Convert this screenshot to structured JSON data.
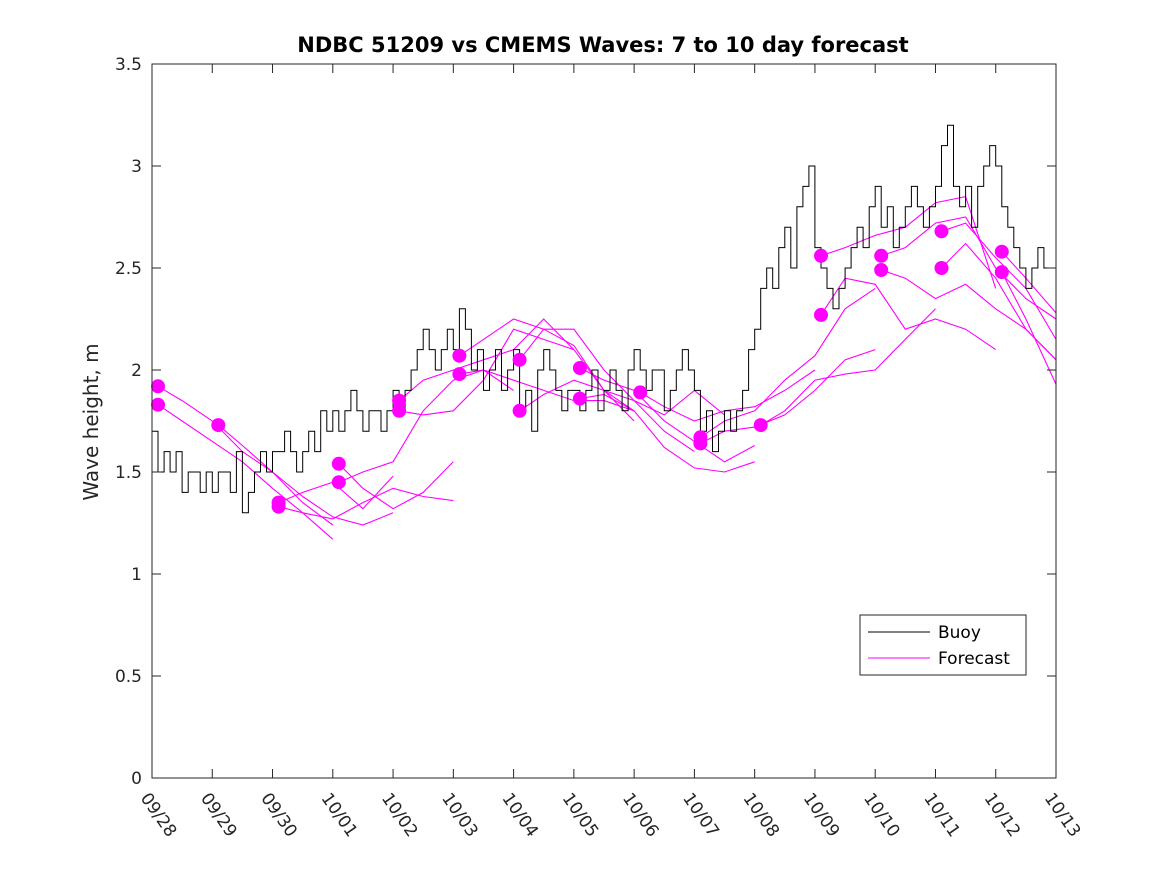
{
  "chart_data": {
    "type": "line",
    "title": "NDBC 51209 vs CMEMS Waves: 7 to 10 day forecast",
    "xlabel": "",
    "ylabel": "Wave height, m",
    "ylim": [
      0,
      3.5
    ],
    "yticks": [
      "0",
      "0.5",
      "1",
      "1.5",
      "2",
      "2.5",
      "3",
      "3.5"
    ],
    "xlim": [
      0,
      15
    ],
    "xticks": [
      "09/28",
      "09/29",
      "09/30",
      "10/01",
      "10/02",
      "10/03",
      "10/04",
      "10/05",
      "10/06",
      "10/07",
      "10/08",
      "10/09",
      "10/10",
      "10/11",
      "10/12",
      "10/13"
    ],
    "grid": false,
    "legend": {
      "position": "bottom-right",
      "entries": [
        "Buoy",
        "Forecast"
      ]
    },
    "colors": {
      "buoy": "#000000",
      "forecast": "#ff00ff"
    },
    "buoy": {
      "name": "Buoy",
      "x": [
        0.0,
        0.1,
        0.2,
        0.3,
        0.4,
        0.5,
        0.6,
        0.7,
        0.8,
        0.9,
        1.0,
        1.1,
        1.2,
        1.3,
        1.4,
        1.5,
        1.6,
        1.7,
        1.8,
        1.9,
        2.0,
        2.1,
        2.2,
        2.3,
        2.4,
        2.5,
        2.6,
        2.7,
        2.8,
        2.9,
        3.0,
        3.1,
        3.2,
        3.3,
        3.4,
        3.5,
        3.6,
        3.7,
        3.8,
        3.9,
        4.0,
        4.1,
        4.2,
        4.3,
        4.4,
        4.5,
        4.6,
        4.7,
        4.8,
        4.9,
        5.0,
        5.1,
        5.2,
        5.3,
        5.4,
        5.5,
        5.6,
        5.7,
        5.8,
        5.9,
        6.0,
        6.1,
        6.2,
        6.3,
        6.4,
        6.5,
        6.6,
        6.7,
        6.8,
        6.9,
        7.0,
        7.1,
        7.2,
        7.3,
        7.4,
        7.5,
        7.6,
        7.7,
        7.8,
        7.9,
        8.0,
        8.1,
        8.2,
        8.3,
        8.4,
        8.5,
        8.6,
        8.7,
        8.8,
        8.9,
        9.0,
        9.1,
        9.2,
        9.3,
        9.4,
        9.5,
        9.6,
        9.7,
        9.8,
        9.9,
        10.0,
        10.1,
        10.2,
        10.3,
        10.4,
        10.5,
        10.6,
        10.7,
        10.8,
        10.9,
        11.0,
        11.1,
        11.2,
        11.3,
        11.4,
        11.5,
        11.6,
        11.7,
        11.8,
        11.9,
        12.0,
        12.1,
        12.2,
        12.3,
        12.4,
        12.5,
        12.6,
        12.7,
        12.8,
        12.9,
        13.0,
        13.1,
        13.2,
        13.3,
        13.4,
        13.5,
        13.6,
        13.7,
        13.8,
        13.9,
        14.0,
        14.1,
        14.2,
        14.3,
        14.4,
        14.5,
        14.6,
        14.7,
        14.8
      ],
      "values": [
        1.7,
        1.5,
        1.6,
        1.5,
        1.6,
        1.4,
        1.5,
        1.5,
        1.4,
        1.5,
        1.4,
        1.5,
        1.5,
        1.4,
        1.6,
        1.3,
        1.4,
        1.5,
        1.6,
        1.5,
        1.6,
        1.6,
        1.7,
        1.6,
        1.5,
        1.6,
        1.7,
        1.6,
        1.8,
        1.7,
        1.8,
        1.7,
        1.8,
        1.9,
        1.8,
        1.7,
        1.8,
        1.8,
        1.7,
        1.8,
        1.9,
        1.8,
        1.9,
        2.0,
        2.1,
        2.2,
        2.1,
        2.0,
        2.1,
        2.2,
        2.1,
        2.3,
        2.2,
        2.0,
        2.1,
        1.9,
        2.0,
        2.1,
        1.9,
        2.0,
        2.1,
        1.8,
        1.9,
        1.7,
        2.0,
        2.1,
        2.0,
        1.9,
        1.8,
        1.9,
        1.9,
        1.8,
        1.9,
        2.0,
        1.8,
        1.9,
        2.0,
        1.9,
        1.8,
        2.0,
        2.1,
        2.0,
        1.9,
        2.0,
        2.0,
        1.8,
        1.9,
        2.0,
        2.1,
        2.0,
        1.9,
        1.7,
        1.8,
        1.6,
        1.7,
        1.8,
        1.7,
        1.8,
        1.9,
        2.1,
        2.2,
        2.4,
        2.5,
        2.4,
        2.6,
        2.7,
        2.5,
        2.8,
        2.9,
        3.0,
        2.6,
        2.5,
        2.4,
        2.3,
        2.4,
        2.5,
        2.6,
        2.7,
        2.6,
        2.8,
        2.9,
        2.7,
        2.8,
        2.6,
        2.7,
        2.8,
        2.9,
        2.8,
        2.7,
        2.8,
        2.9,
        3.1,
        3.2,
        2.9,
        2.8,
        2.9,
        2.7,
        2.9,
        3.0,
        3.1,
        3.0,
        2.8,
        2.7,
        2.6,
        2.5,
        2.4,
        2.5,
        2.6,
        2.5
      ]
    },
    "forecasts": [
      {
        "x": [
          0.1,
          0.5,
          1.0,
          1.5,
          2.0,
          2.5,
          3.0
        ],
        "values": [
          1.92,
          1.85,
          1.75,
          1.6,
          1.5,
          1.35,
          1.24
        ]
      },
      {
        "x": [
          0.1,
          0.5,
          1.0,
          1.5,
          2.0,
          2.5,
          3.0
        ],
        "values": [
          1.83,
          1.75,
          1.65,
          1.55,
          1.42,
          1.3,
          1.17
        ]
      },
      {
        "x": [
          1.1,
          1.5,
          2.0,
          2.5,
          3.0,
          3.5,
          4.0
        ],
        "values": [
          1.73,
          1.63,
          1.5,
          1.38,
          1.28,
          1.24,
          1.3
        ]
      },
      {
        "x": [
          2.1,
          2.5,
          3.0,
          3.5,
          4.0
        ],
        "values": [
          1.35,
          1.4,
          1.45,
          1.32,
          1.48
        ]
      },
      {
        "x": [
          2.1,
          2.5,
          3.0,
          3.5,
          4.0,
          4.5,
          5.0
        ],
        "values": [
          1.33,
          1.3,
          1.27,
          1.35,
          1.42,
          1.38,
          1.36
        ]
      },
      {
        "x": [
          3.1,
          3.5,
          4.0,
          4.5,
          5.0
        ],
        "values": [
          1.54,
          1.42,
          1.32,
          1.4,
          1.55
        ]
      },
      {
        "x": [
          3.1,
          3.5,
          4.0,
          4.5,
          5.0,
          5.5,
          6.0
        ],
        "values": [
          1.45,
          1.5,
          1.55,
          1.8,
          1.95,
          2.0,
          1.9
        ]
      },
      {
        "x": [
          4.1,
          4.5,
          5.0,
          5.5,
          6.0,
          6.5,
          7.0,
          7.5,
          8.0
        ],
        "values": [
          1.85,
          1.95,
          2.0,
          2.05,
          2.1,
          2.25,
          2.1,
          1.9,
          1.8
        ]
      },
      {
        "x": [
          4.1,
          4.5,
          5.0,
          5.5,
          6.0,
          6.5,
          7.0
        ],
        "values": [
          1.8,
          1.78,
          1.8,
          1.95,
          2.2,
          2.15,
          2.1
        ]
      },
      {
        "x": [
          5.1,
          5.5,
          6.0,
          6.5,
          7.0,
          7.5,
          8.0
        ],
        "values": [
          2.07,
          2.15,
          2.25,
          2.2,
          2.12,
          1.9,
          1.75
        ]
      },
      {
        "x": [
          5.1,
          5.5,
          6.0,
          6.5,
          7.0,
          7.5,
          8.0
        ],
        "values": [
          1.98,
          2.0,
          1.95,
          1.9,
          1.85,
          1.85,
          1.8
        ]
      },
      {
        "x": [
          6.1,
          6.5,
          7.0,
          7.5,
          8.0,
          8.5,
          9.0
        ],
        "values": [
          2.05,
          2.2,
          2.2,
          2.0,
          1.85,
          1.7,
          1.6
        ]
      },
      {
        "x": [
          6.1,
          6.5,
          7.0,
          7.5,
          8.0,
          8.5,
          9.0,
          9.5
        ],
        "values": [
          1.8,
          1.88,
          1.95,
          1.9,
          1.85,
          1.78,
          1.9,
          1.78
        ]
      },
      {
        "x": [
          7.1,
          7.5,
          8.0,
          8.5,
          9.0,
          9.5,
          10.0
        ],
        "values": [
          2.01,
          1.95,
          1.9,
          1.75,
          1.65,
          1.55,
          1.63
        ]
      },
      {
        "x": [
          7.1,
          7.5,
          8.0,
          8.5,
          9.0,
          9.5,
          10.0
        ],
        "values": [
          1.86,
          1.88,
          1.8,
          1.62,
          1.52,
          1.5,
          1.55
        ]
      },
      {
        "x": [
          8.1,
          8.5,
          9.0,
          9.5,
          10.0,
          10.5,
          11.0
        ],
        "values": [
          1.89,
          1.82,
          1.75,
          1.8,
          1.82,
          1.9,
          2.0
        ]
      },
      {
        "x": [
          9.1,
          9.5,
          10.0,
          10.5,
          11.0,
          11.5,
          12.0
        ],
        "values": [
          1.67,
          1.75,
          1.8,
          1.95,
          2.07,
          2.3,
          2.4
        ]
      },
      {
        "x": [
          9.1,
          9.5,
          10.0,
          10.5,
          11.0,
          11.5,
          12.0
        ],
        "values": [
          1.64,
          1.7,
          1.72,
          1.78,
          1.9,
          2.05,
          2.1
        ]
      },
      {
        "x": [
          10.1,
          10.5,
          11.0,
          11.5,
          12.0,
          12.5,
          13.0
        ],
        "values": [
          1.73,
          1.8,
          1.95,
          1.98,
          2.0,
          2.15,
          2.3
        ]
      },
      {
        "x": [
          11.1,
          11.5,
          12.0,
          12.5,
          13.0,
          13.5,
          14.0
        ],
        "values": [
          2.56,
          2.6,
          2.66,
          2.7,
          2.82,
          2.85,
          2.4
        ]
      },
      {
        "x": [
          11.1,
          11.5,
          12.0,
          12.5,
          13.0,
          13.5,
          14.0
        ],
        "values": [
          2.27,
          2.45,
          2.42,
          2.2,
          2.25,
          2.2,
          2.1
        ]
      },
      {
        "x": [
          12.1,
          12.5,
          13.0,
          13.5,
          14.0,
          14.5,
          15.0
        ],
        "values": [
          2.56,
          2.6,
          2.72,
          2.75,
          2.5,
          2.35,
          2.25
        ]
      },
      {
        "x": [
          12.1,
          12.5,
          13.0,
          13.5,
          14.0,
          14.5,
          15.0
        ],
        "values": [
          2.49,
          2.45,
          2.35,
          2.42,
          2.3,
          2.2,
          2.05
        ]
      },
      {
        "x": [
          13.1,
          13.5,
          14.0,
          14.5,
          15.0
        ],
        "values": [
          2.68,
          2.72,
          2.55,
          2.4,
          2.15
        ]
      },
      {
        "x": [
          13.1,
          13.5,
          14.0,
          14.5,
          15.0
        ],
        "values": [
          2.5,
          2.62,
          2.45,
          2.2,
          2.05
        ]
      },
      {
        "x": [
          14.1,
          14.5,
          15.0
        ],
        "values": [
          2.58,
          2.45,
          2.28
        ]
      },
      {
        "x": [
          14.1,
          14.5,
          15.0
        ],
        "values": [
          2.48,
          2.25,
          1.93
        ]
      }
    ],
    "forecast_start_points": {
      "x": [
        0.1,
        0.1,
        1.1,
        2.1,
        2.1,
        3.1,
        3.1,
        4.1,
        4.1,
        5.1,
        5.1,
        6.1,
        6.1,
        7.1,
        7.1,
        8.1,
        9.1,
        9.1,
        10.1,
        11.1,
        11.1,
        12.1,
        12.1,
        13.1,
        13.1,
        14.1,
        14.1
      ],
      "values": [
        1.92,
        1.83,
        1.73,
        1.35,
        1.33,
        1.54,
        1.45,
        1.85,
        1.8,
        2.07,
        1.98,
        2.05,
        1.8,
        2.01,
        1.86,
        1.89,
        1.67,
        1.64,
        1.73,
        2.56,
        2.27,
        2.56,
        2.49,
        2.68,
        2.5,
        2.58,
        2.48
      ]
    }
  }
}
